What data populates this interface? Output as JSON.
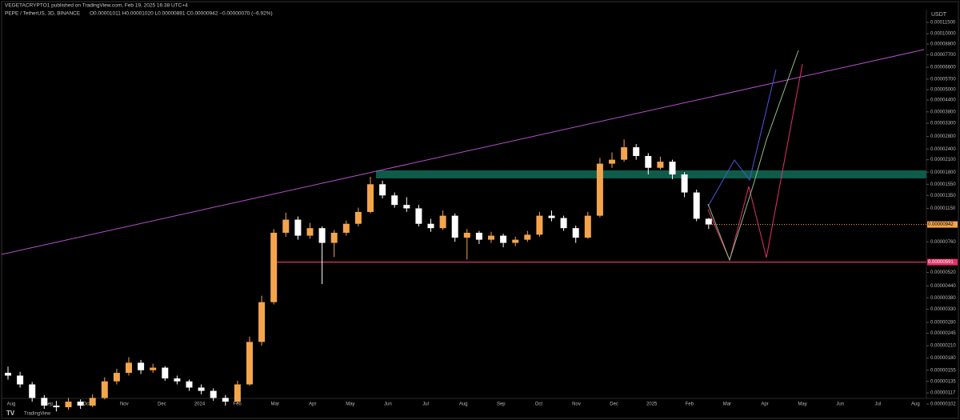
{
  "header": {
    "publisher": "VEGETACRYPTO1 published on TradingView.com, Feb 19, 2025 16:38 UTC+4",
    "symbol": "PEPE / TetherUS, 3D, BINANCE",
    "ohlc": "O0.00001011 H0.00001020 L0.00000891 C0.00000942 −0.00000070 (−6.92%)"
  },
  "footer": {
    "brand": "TradingView"
  },
  "chart_data": {
    "type": "candlestick",
    "currency": "USDT",
    "log_scale": true,
    "up_color": "#f4a54c",
    "down_color": "#ffffff",
    "ylim": [
      1.02e-06,
      0.000115
    ],
    "yticks": [
      {
        "value": 0.000115,
        "label": "0.00011500"
      },
      {
        "value": 0.0001,
        "label": "0.00010000"
      },
      {
        "value": 8.8e-05,
        "label": "0.00008800"
      },
      {
        "value": 7.7e-05,
        "label": "0.00007700"
      },
      {
        "value": 6.6e-05,
        "label": "0.00006600"
      },
      {
        "value": 5.7e-05,
        "label": "0.00005700"
      },
      {
        "value": 5e-05,
        "label": "0.00005000"
      },
      {
        "value": 4.4e-05,
        "label": "0.00004400"
      },
      {
        "value": 3.8e-05,
        "label": "0.00003800"
      },
      {
        "value": 3.3e-05,
        "label": "0.00003300"
      },
      {
        "value": 2.8e-05,
        "label": "0.00002800"
      },
      {
        "value": 2.4e-05,
        "label": "0.00002400"
      },
      {
        "value": 2.1e-05,
        "label": "0.00002100"
      },
      {
        "value": 1.8e-05,
        "label": "0.00001800"
      },
      {
        "value": 1.55e-05,
        "label": "0.00001550"
      },
      {
        "value": 1.35e-05,
        "label": "0.00001350"
      },
      {
        "value": 1.15e-05,
        "label": "0.00001150"
      },
      {
        "value": 7.6e-06,
        "label": "0.00000760"
      },
      {
        "value": 5.2e-06,
        "label": "0.00000520"
      },
      {
        "value": 4.4e-06,
        "label": "0.00000440"
      },
      {
        "value": 3.8e-06,
        "label": "0.00000380"
      },
      {
        "value": 3.3e-06,
        "label": "0.00000330"
      },
      {
        "value": 2.8e-06,
        "label": "0.00000280"
      },
      {
        "value": 2.45e-06,
        "label": "0.00000245"
      },
      {
        "value": 2.1e-06,
        "label": "0.00000210"
      },
      {
        "value": 1.8e-06,
        "label": "0.00000180"
      },
      {
        "value": 1.55e-06,
        "label": "0.00000155"
      },
      {
        "value": 1.35e-06,
        "label": "0.00000135"
      },
      {
        "value": 1.17e-06,
        "label": "0.00000117"
      },
      {
        "value": 1.02e-06,
        "label": "0.00000102"
      }
    ],
    "last_price": {
      "value": 9.42e-06,
      "label": "0.00000942"
    },
    "support": {
      "value": 5.91e-06,
      "label": "0.00000591",
      "color": "#e0316a"
    },
    "x_labels": [
      "Aug",
      "Sep",
      "Oct",
      "Nov",
      "Dec",
      "2024",
      "Feb",
      "Mar",
      "Apr",
      "May",
      "Jun",
      "Jul",
      "Aug",
      "Sep",
      "Oct",
      "Nov",
      "Dec",
      "2025",
      "Feb",
      "Mar",
      "Apr",
      "May",
      "Jun",
      "Jul",
      "Aug"
    ],
    "candles": [
      [
        1.5e-06,
        1.62e-06,
        1.38e-06,
        1.45e-06
      ],
      [
        1.45e-06,
        1.52e-06,
        1.25e-06,
        1.3e-06
      ],
      [
        1.3e-06,
        1.34e-06,
        1.05e-06,
        1.1e-06
      ],
      [
        1.1e-06,
        1.14e-06,
        9.6e-07,
        1e-06
      ],
      [
        1e-06,
        1.06e-06,
        9.3e-07,
        9.8e-07
      ],
      [
        9.8e-07,
        1.1e-06,
        9.5e-07,
        1.05e-06
      ],
      [
        1.05e-06,
        1.08e-06,
        9.6e-07,
        1e-06
      ],
      [
        1e-06,
        1.15e-06,
        9.8e-07,
        1.1e-06
      ],
      [
        1.1e-06,
        1.42e-06,
        1.08e-06,
        1.35e-06
      ],
      [
        1.35e-06,
        1.58e-06,
        1.3e-06,
        1.5e-06
      ],
      [
        1.5e-06,
        1.82e-06,
        1.45e-06,
        1.7e-06
      ],
      [
        1.7e-06,
        1.76e-06,
        1.48e-06,
        1.55e-06
      ],
      [
        1.55e-06,
        1.68e-06,
        1.5e-06,
        1.6e-06
      ],
      [
        1.6e-06,
        1.63e-06,
        1.36e-06,
        1.4e-06
      ],
      [
        1.4e-06,
        1.45e-06,
        1.3e-06,
        1.35e-06
      ],
      [
        1.35e-06,
        1.38e-06,
        1.2e-06,
        1.25e-06
      ],
      [
        1.25e-06,
        1.3e-06,
        1.15e-06,
        1.2e-06
      ],
      [
        1.2e-06,
        1.24e-06,
        1.06e-06,
        1.1e-06
      ],
      [
        1.1e-06,
        1.14e-06,
        1e-06,
        1.05e-06
      ],
      [
        1.05e-06,
        1.36e-06,
        1.03e-06,
        1.3e-06
      ],
      [
        1.3e-06,
        2.35e-06,
        1.28e-06,
        2.2e-06
      ],
      [
        2.2e-06,
        3.9e-06,
        2.1e-06,
        3.6e-06
      ],
      [
        3.6e-06,
        8.9e-06,
        3.5e-06,
        8.5e-06
      ],
      [
        8.5e-06,
        1.09e-05,
        8.1e-06,
        1e-05
      ],
      [
        1e-05,
        1.04e-05,
        7.8e-06,
        8.2e-06
      ],
      [
        8.2e-06,
        9.6e-06,
        7.9e-06,
        9e-06
      ],
      [
        9e-06,
        9.2e-06,
        4.5e-06,
        7.5e-06
      ],
      [
        7.5e-06,
        8.8e-06,
        6.3e-06,
        8.5e-06
      ],
      [
        8.5e-06,
        9.9e-06,
        8.2e-06,
        9.5e-06
      ],
      [
        9.5e-06,
        1.16e-05,
        9.2e-06,
        1.1e-05
      ],
      [
        1.1e-05,
        1.7e-05,
        1.08e-05,
        1.55e-05
      ],
      [
        1.55e-05,
        1.62e-05,
        1.3e-05,
        1.35e-05
      ],
      [
        1.35e-05,
        1.4e-05,
        1.16e-05,
        1.2e-05
      ],
      [
        1.2e-05,
        1.32e-05,
        1.1e-05,
        1.15e-05
      ],
      [
        1.15e-05,
        1.2e-05,
        9.2e-06,
        9.5e-06
      ],
      [
        9.5e-06,
        1.01e-05,
        8.6e-06,
        9e-06
      ],
      [
        9e-06,
        1.12e-05,
        8.8e-06,
        1.05e-05
      ],
      [
        1.05e-05,
        1.08e-05,
        7.6e-06,
        8e-06
      ],
      [
        8e-06,
        8.9e-06,
        6.1e-06,
        8.5e-06
      ],
      [
        8.5e-06,
        8.7e-06,
        7.4e-06,
        7.8e-06
      ],
      [
        7.8e-06,
        8.6e-06,
        7.5e-06,
        8.2e-06
      ],
      [
        8.2e-06,
        8.4e-06,
        7.1e-06,
        7.5e-06
      ],
      [
        7.5e-06,
        8.1e-06,
        7.2e-06,
        7.8e-06
      ],
      [
        7.8e-06,
        8.7e-06,
        7.6e-06,
        8.3e-06
      ],
      [
        8.3e-06,
        1.1e-05,
        8.1e-06,
        1.05e-05
      ],
      [
        1.05e-05,
        1.12e-05,
        9.8e-06,
        1.02e-05
      ],
      [
        1.02e-05,
        1.05e-05,
        8.7e-06,
        9e-06
      ],
      [
        9e-06,
        9.3e-06,
        7.5e-06,
        8e-06
      ],
      [
        8e-06,
        1.1e-05,
        7.9e-06,
        1.05e-05
      ],
      [
        1.05e-05,
        2.15e-05,
        1.03e-05,
        2e-05
      ],
      [
        2e-05,
        2.3e-05,
        1.9e-05,
        2.1e-05
      ],
      [
        2.1e-05,
        2.7e-05,
        2.05e-05,
        2.45e-05
      ],
      [
        2.45e-05,
        2.55e-05,
        2.1e-05,
        2.2e-05
      ],
      [
        2.2e-05,
        2.28e-05,
        1.75e-05,
        1.9e-05
      ],
      [
        1.9e-05,
        2.18e-05,
        1.86e-05,
        2.05e-05
      ],
      [
        2.05e-05,
        2.1e-05,
        1.65e-05,
        1.75e-05
      ],
      [
        1.75e-05,
        1.8e-05,
        1.32e-05,
        1.4e-05
      ],
      [
        1.4e-05,
        1.45e-05,
        9.8e-06,
        1.011e-05
      ],
      [
        1.011e-05,
        1.02e-05,
        8.91e-06,
        9.42e-06
      ]
    ]
  }
}
